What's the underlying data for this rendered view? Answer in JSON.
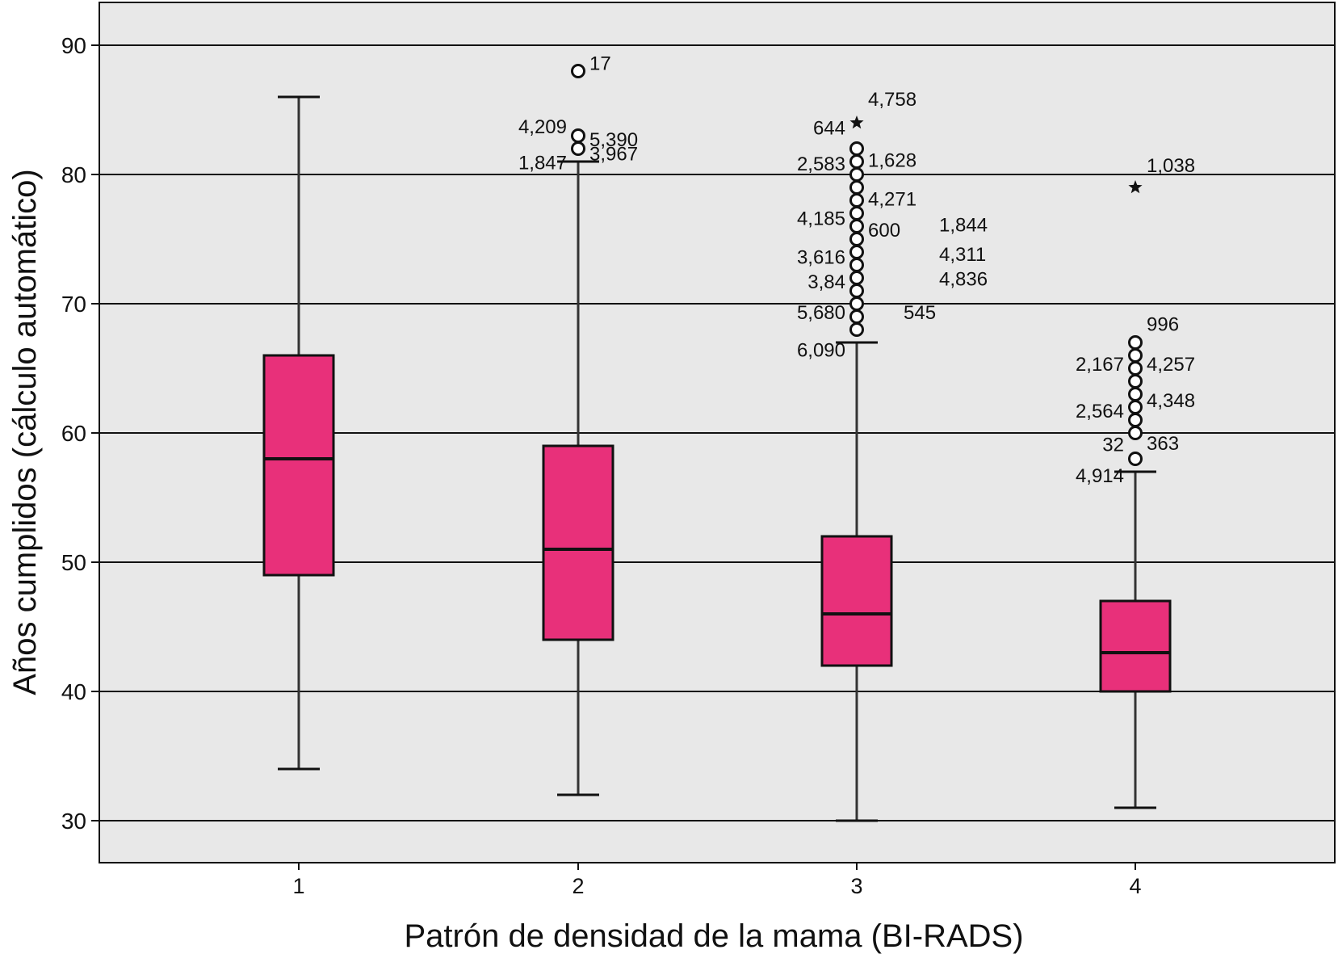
{
  "chart_data": {
    "type": "box",
    "xlabel": "Patrón de densidad de la mama (BI-RADS)",
    "ylabel": "Años cumplidos (cálculo automático)",
    "ylim": [
      26.7,
      93.2
    ],
    "yticks": [
      30,
      40,
      50,
      60,
      70,
      80,
      90
    ],
    "grid": "horizontal",
    "colors": {
      "box": "#E8307A",
      "plot_bg": "#E8E8E8",
      "line": "#111111",
      "whisker": "#333333"
    },
    "categories": [
      "1",
      "2",
      "3",
      "4"
    ],
    "boxes": [
      {
        "category": "1",
        "whisker_low": 34,
        "q1": 49,
        "median": 58,
        "q3": 66,
        "whisker_high": 86,
        "outliers": [],
        "extremes": []
      },
      {
        "category": "2",
        "whisker_low": 32,
        "q1": 44,
        "median": 51,
        "q3": 59,
        "whisker_high": 81,
        "outliers": [
          83,
          82,
          88
        ],
        "extremes": []
      },
      {
        "category": "3",
        "whisker_low": 30,
        "q1": 42,
        "median": 46,
        "q3": 52,
        "whisker_high": 67,
        "outliers": [
          68,
          69,
          70,
          71,
          72,
          73,
          74,
          75,
          76,
          77,
          78,
          79,
          80,
          81,
          82
        ],
        "extremes": [
          84
        ]
      },
      {
        "category": "4",
        "whisker_low": 31,
        "q1": 40,
        "median": 43,
        "q3": 47,
        "whisker_high": 57,
        "outliers": [
          58,
          60,
          61,
          62,
          63,
          64,
          65,
          66,
          67
        ],
        "extremes": [
          79
        ]
      }
    ],
    "outlier_labels": [
      {
        "category": "2",
        "text": "17",
        "y": 88.6,
        "side": "right"
      },
      {
        "category": "2",
        "text": "4,209",
        "y": 83.7,
        "side": "left"
      },
      {
        "category": "2",
        "text": "5,390",
        "y": 82.7,
        "side": "right"
      },
      {
        "category": "2",
        "text": "1,847",
        "y": 80.9,
        "side": "left"
      },
      {
        "category": "2",
        "text": "3,967",
        "y": 81.6,
        "side": "right"
      },
      {
        "category": "3",
        "text": "4,758",
        "y": 85.8,
        "side": "right"
      },
      {
        "category": "3",
        "text": "644",
        "y": 83.6,
        "side": "left"
      },
      {
        "category": "3",
        "text": "2,583",
        "y": 80.8,
        "side": "left"
      },
      {
        "category": "3",
        "text": "1,628",
        "y": 81.1,
        "side": "right"
      },
      {
        "category": "3",
        "text": "4,271",
        "y": 78.1,
        "side": "right"
      },
      {
        "category": "3",
        "text": "4,185",
        "y": 76.6,
        "side": "left"
      },
      {
        "category": "3",
        "text": "600",
        "y": 75.7,
        "side": "right"
      },
      {
        "category": "3",
        "text": "1,844",
        "y": 76.1,
        "side": "right",
        "offset": 2
      },
      {
        "category": "3",
        "text": "3,616",
        "y": 73.6,
        "side": "left"
      },
      {
        "category": "3",
        "text": "4,311",
        "y": 73.8,
        "side": "right",
        "offset": 2
      },
      {
        "category": "3",
        "text": "3,84",
        "y": 71.7,
        "side": "left"
      },
      {
        "category": "3",
        "text": "4,836",
        "y": 71.9,
        "side": "right",
        "offset": 2
      },
      {
        "category": "3",
        "text": "5,680",
        "y": 69.3,
        "side": "left"
      },
      {
        "category": "3",
        "text": "545",
        "y": 69.3,
        "side": "right",
        "offset": 1
      },
      {
        "category": "3",
        "text": "6,090",
        "y": 66.4,
        "side": "left"
      },
      {
        "category": "4",
        "text": "1,038",
        "y": 80.7,
        "side": "right"
      },
      {
        "category": "4",
        "text": "996",
        "y": 68.4,
        "side": "right"
      },
      {
        "category": "4",
        "text": "2,167",
        "y": 65.3,
        "side": "left"
      },
      {
        "category": "4",
        "text": "4,257",
        "y": 65.3,
        "side": "right"
      },
      {
        "category": "4",
        "text": "4,348",
        "y": 62.5,
        "side": "right"
      },
      {
        "category": "4",
        "text": "2,564",
        "y": 61.7,
        "side": "left"
      },
      {
        "category": "4",
        "text": "32",
        "y": 59.1,
        "side": "left"
      },
      {
        "category": "4",
        "text": "363",
        "y": 59.2,
        "side": "right"
      },
      {
        "category": "4",
        "text": "4,914",
        "y": 56.7,
        "side": "left"
      }
    ]
  }
}
